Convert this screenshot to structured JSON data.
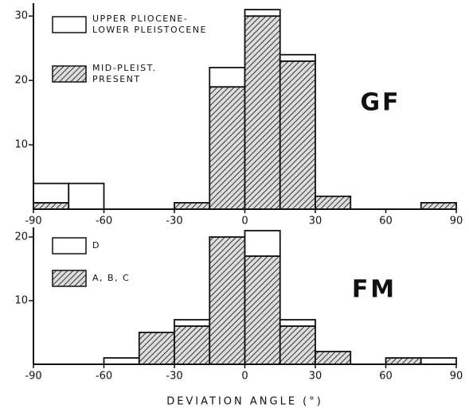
{
  "chart_data": [
    {
      "type": "histogram",
      "panel_label": "GF",
      "bins": [
        -90,
        -75,
        -60,
        -45,
        -30,
        -15,
        0,
        15,
        30,
        45,
        60,
        75,
        90
      ],
      "series": [
        {
          "name": "UPPER PLIOCENE-\nLOWER PLEISTOCENE",
          "color": "#ffffff",
          "values": [
            3,
            4,
            0,
            0,
            0,
            3,
            1,
            1,
            0,
            0,
            0,
            0
          ]
        },
        {
          "name": "MID-PLEIST.\nPRESENT",
          "color": "#333333",
          "pattern": "hatch",
          "values": [
            1,
            0,
            0,
            0,
            1,
            19,
            30,
            23,
            2,
            0,
            0,
            1
          ]
        }
      ],
      "xlim": [
        -90,
        90
      ],
      "xticks": [
        -90,
        -60,
        -30,
        0,
        30,
        60,
        90
      ],
      "ylim": [
        0,
        32
      ],
      "yticks": [
        10,
        20,
        30
      ]
    },
    {
      "type": "histogram",
      "panel_label": "FM",
      "xlabel": "DEVIATION ANGLE (°)",
      "bins": [
        -90,
        -75,
        -60,
        -45,
        -30,
        -15,
        0,
        15,
        30,
        45,
        60,
        75,
        90
      ],
      "series": [
        {
          "name": "D",
          "color": "#ffffff",
          "values": [
            0,
            0,
            1,
            0,
            1,
            0,
            4,
            1,
            0,
            0,
            0,
            1
          ]
        },
        {
          "name": "A, B, C",
          "color": "#333333",
          "pattern": "hatch",
          "values": [
            0,
            0,
            0,
            5,
            6,
            20,
            17,
            6,
            2,
            0,
            1,
            0
          ]
        }
      ],
      "xlim": [
        -90,
        90
      ],
      "xticks": [
        -90,
        -60,
        -30,
        0,
        30,
        60,
        90
      ],
      "ylim": [
        0,
        21.5
      ],
      "yticks": [
        10,
        20
      ]
    }
  ]
}
